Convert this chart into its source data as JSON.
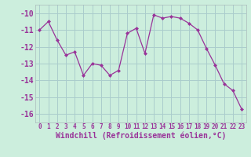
{
  "x": [
    0,
    1,
    2,
    3,
    4,
    5,
    6,
    7,
    8,
    9,
    10,
    11,
    12,
    13,
    14,
    15,
    16,
    17,
    18,
    19,
    20,
    21,
    22,
    23
  ],
  "y": [
    -11.0,
    -10.5,
    -11.6,
    -12.5,
    -12.3,
    -13.7,
    -13.0,
    -13.1,
    -13.7,
    -13.4,
    -11.2,
    -10.9,
    -12.4,
    -10.1,
    -10.3,
    -10.2,
    -10.3,
    -10.6,
    -11.0,
    -12.1,
    -13.1,
    -14.2,
    -14.6,
    -15.7
  ],
  "line_color": "#993399",
  "marker": "D",
  "marker_size": 2,
  "background_color": "#cceedd",
  "grid_color": "#aacccc",
  "xlabel": "Windchill (Refroidissement éolien,°C)",
  "ylim": [
    -16.5,
    -9.5
  ],
  "xlim": [
    -0.5,
    23.5
  ],
  "yticks": [
    -16,
    -15,
    -14,
    -13,
    -12,
    -11,
    -10
  ],
  "xticks": [
    0,
    1,
    2,
    3,
    4,
    5,
    6,
    7,
    8,
    9,
    10,
    11,
    12,
    13,
    14,
    15,
    16,
    17,
    18,
    19,
    20,
    21,
    22,
    23
  ],
  "tick_color": "#993399",
  "xlabel_fontsize": 7,
  "ytick_fontsize": 7,
  "xtick_fontsize": 5.5
}
